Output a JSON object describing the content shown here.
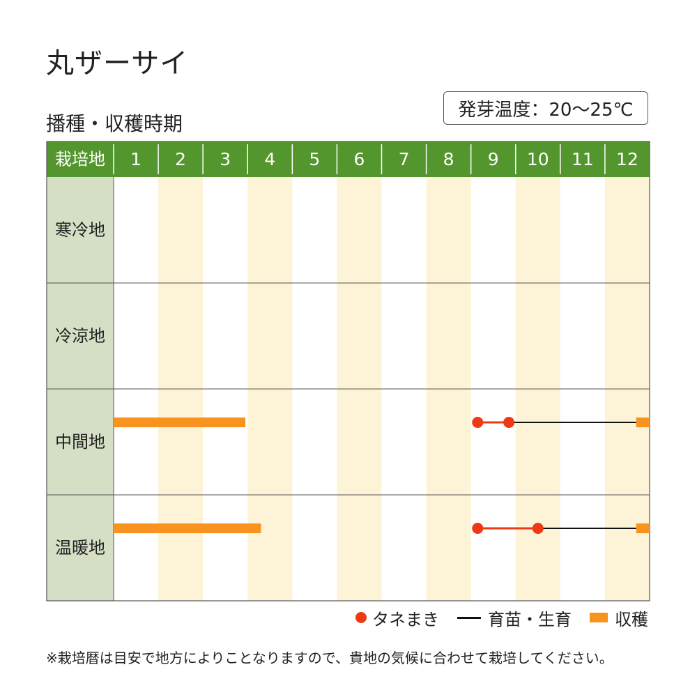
{
  "title": "丸ザーサイ",
  "subtitle": "播種・収穫時期",
  "temperature": "発芽温度：20～25℃",
  "note": "※栽培暦は目安で地方によりことなりますので、貴地の気候に合わせて栽培してください。",
  "legend": {
    "sowing": "タネまき",
    "growing": "育苗・生育",
    "harvest": "収穫"
  },
  "colors": {
    "header_green": "#54962e",
    "label_bg": "#d5dfc5",
    "stripe": "#fdf4d8",
    "sowing": "#ee3a14",
    "harvest": "#f7931e",
    "growing": "#111111"
  },
  "chart_data": {
    "type": "table",
    "header_label": "栽培地",
    "months": [
      "1",
      "2",
      "3",
      "4",
      "5",
      "6",
      "7",
      "8",
      "9",
      "10",
      "11",
      "12"
    ],
    "regions": [
      {
        "name": "寒冷地",
        "sowing": [],
        "growing": [],
        "harvest": []
      },
      {
        "name": "冷涼地",
        "sowing": [],
        "growing": [],
        "harvest": []
      },
      {
        "name": "中間地",
        "sowing": [
          [
            9.15,
            9.85
          ]
        ],
        "growing": [
          [
            9.85,
            12.7
          ]
        ],
        "harvest": [
          [
            1.0,
            3.95
          ],
          [
            12.7,
            13.0
          ]
        ]
      },
      {
        "name": "温暖地",
        "sowing": [
          [
            9.15,
            10.5
          ]
        ],
        "growing": [
          [
            10.5,
            12.7
          ]
        ],
        "harvest": [
          [
            1.0,
            4.3
          ],
          [
            12.7,
            13.0
          ]
        ]
      }
    ]
  }
}
